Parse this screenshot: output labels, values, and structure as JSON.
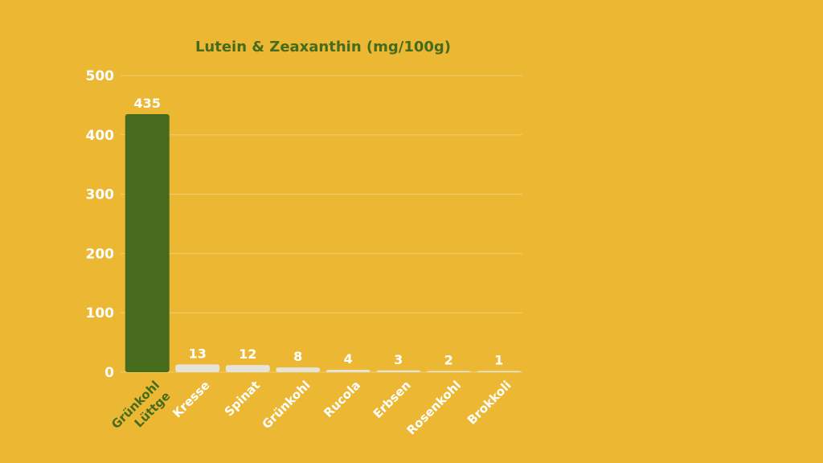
{
  "chart_data": {
    "type": "bar",
    "title": "Lutein & Zeaxanthin (mg/100g)",
    "xlabel": "",
    "ylabel": "",
    "categories": [
      [
        "Lüttge",
        "Grünkohl"
      ],
      [
        "Kresse"
      ],
      [
        "Spinat"
      ],
      [
        "Grünkohl"
      ],
      [
        "Rucola"
      ],
      [
        "Erbsen"
      ],
      [
        "Rosenkohl"
      ],
      [
        "Brokkoli"
      ]
    ],
    "values": [
      435,
      13,
      12,
      8,
      4,
      3,
      2,
      1
    ],
    "value_labels": [
      "435",
      "13",
      "12",
      "8",
      "4",
      "3",
      "2",
      "1"
    ],
    "yticks": [
      0,
      100,
      200,
      300,
      400,
      500
    ],
    "ytick_labels": [
      "0",
      "100",
      "200",
      "300",
      "400",
      "500"
    ],
    "ylim": [
      0,
      500
    ],
    "grid": true,
    "legend": "none",
    "highlight_index": 0
  },
  "colors": {
    "background": "#ECB834",
    "highlight_bar": "#466B1C",
    "bar": "#E6E3D8",
    "title": "#466B1C",
    "highlight_label": "#466B1C",
    "label": "#FFFFFF",
    "gridline": "#F1CC6A"
  }
}
